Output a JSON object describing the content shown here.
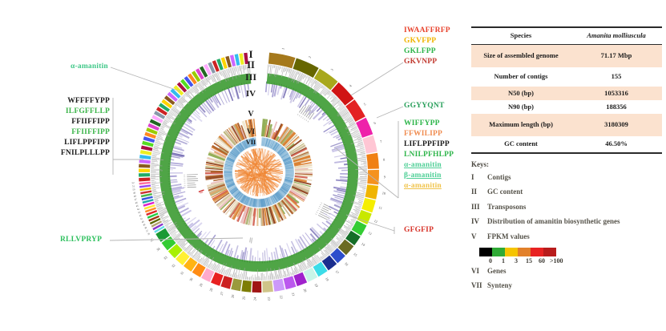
{
  "table": {
    "header": {
      "col1": "Species",
      "col2": "Amanita molliuscula"
    },
    "rows": [
      {
        "label": "Size of assembled genome",
        "value": "71.17 Mbp"
      },
      {
        "label": "Number of contigs",
        "value": "155"
      },
      {
        "label": "N50 (bp)",
        "value": "1053316"
      },
      {
        "label": "N90 (bp)",
        "value": "188356"
      },
      {
        "label": "Maximum length (bp)",
        "value": "3180309"
      },
      {
        "label": "GC content",
        "value": "46.50%"
      }
    ]
  },
  "keys": {
    "title": "Keys:",
    "items": [
      {
        "numeral": "I",
        "label": "Contigs"
      },
      {
        "numeral": "II",
        "label": "GC content"
      },
      {
        "numeral": "III",
        "label": "Transposons"
      },
      {
        "numeral": "IV",
        "label": "Distribution of amanitin biosynthetic genes"
      },
      {
        "numeral": "V",
        "label": "FPKM values"
      },
      {
        "numeral": "VI",
        "label": "Genes"
      },
      {
        "numeral": "VII",
        "label": "Synteny"
      }
    ],
    "fpkm_scale": {
      "colors": [
        "#000000",
        "#2faa35",
        "#f5c400",
        "#e2802a",
        "#e82222",
        "#b81c1c"
      ],
      "labels": [
        "0",
        "1",
        "3",
        "15",
        "60",
        ">100"
      ]
    }
  },
  "labels_left": {
    "amanitin": {
      "text": "α-amanitin",
      "color": "#3fc888"
    },
    "peptides": [
      {
        "text": "WFFFFYPP",
        "color": "#1a1a1a"
      },
      {
        "text": "ILFGFFLLP",
        "color": "#3cb54a"
      },
      {
        "text": "FFIIFFIPP",
        "color": "#1a1a1a"
      },
      {
        "text": "FFIIFFIPP",
        "color": "#3cb54a"
      },
      {
        "text": "LIFLPPFIPP",
        "color": "#1a1a1a"
      },
      {
        "text": "FNILPLLLPP",
        "color": "#1a1a1a"
      }
    ],
    "bottom": {
      "text": "RLLVPRYP",
      "color": "#2ec05e"
    }
  },
  "labels_right": {
    "group1": [
      {
        "text": "IWAAFFRFP",
        "color": "#e8442e"
      },
      {
        "text": "GKVFPP",
        "color": "#f0b400"
      },
      {
        "text": "GKLFPP",
        "color": "#2eb54a"
      },
      {
        "text": "GKVNPP",
        "color": "#c23a30"
      }
    ],
    "single1": {
      "text": "GGYYQNT",
      "color": "#2aa05c"
    },
    "group2": [
      {
        "text": "WIFFYPP",
        "color": "#2eb54a"
      },
      {
        "text": "FFWILIPP",
        "color": "#f08c50"
      },
      {
        "text": "LIFLPPFIPP",
        "color": "#1a1a1a"
      },
      {
        "text": "LNILPFHLPP",
        "color": "#2eb54a"
      },
      {
        "text": "α-amanitin",
        "color": "#4ecf96"
      },
      {
        "text": "β-amanitin",
        "color": "#4ecf96"
      },
      {
        "text": "α-amanitin",
        "color": "#f0c34a"
      }
    ],
    "single2": {
      "text": "GFGFIP",
      "color": "#d8342a"
    }
  },
  "chart_data": {
    "type": "circos",
    "description": "Circular genome map of Amanita molliuscula; seven concentric tracks, numbered contig blocks on the outer ring, orange synteny chords in the centre",
    "tracks": [
      {
        "numeral": "I",
        "name": "Contigs"
      },
      {
        "numeral": "II",
        "name": "GC content"
      },
      {
        "numeral": "III",
        "name": "Transposons"
      },
      {
        "numeral": "IV",
        "name": "Distribution of amanitin biosynthetic genes"
      },
      {
        "numeral": "V",
        "name": "FPKM values"
      },
      {
        "numeral": "VI",
        "name": "Genes"
      },
      {
        "numeral": "VII",
        "name": "Synteny"
      }
    ],
    "contig_segments": [
      {
        "n": 1,
        "w": 13,
        "color": "#a5791c"
      },
      {
        "n": 2,
        "w": 12,
        "color": "#666600"
      },
      {
        "n": 3,
        "w": 11,
        "color": "#a8a81c"
      },
      {
        "n": 4,
        "w": 11,
        "color": "#d01414"
      },
      {
        "n": 5,
        "w": 10,
        "color": "#e32222"
      },
      {
        "n": 6,
        "w": 9,
        "color": "#ee22aa"
      },
      {
        "n": 7,
        "w": 8.5,
        "color": "#ffc6d4"
      },
      {
        "n": 8,
        "w": 8,
        "color": "#f08014"
      },
      {
        "n": 9,
        "w": 7.5,
        "color": "#f5921e"
      },
      {
        "n": 10,
        "w": 7,
        "color": "#f0b400"
      },
      {
        "n": 11,
        "w": 6.5,
        "color": "#f5ee00"
      },
      {
        "n": 12,
        "w": 6,
        "color": "#c8e800"
      },
      {
        "n": 13,
        "w": 6,
        "color": "#33cc33"
      },
      {
        "n": 14,
        "w": 5.5,
        "color": "#156e28"
      },
      {
        "n": 15,
        "w": 6,
        "color": "#6b6b22"
      },
      {
        "n": 16,
        "w": 5.5,
        "color": "#2d4ecc"
      },
      {
        "n": 17,
        "w": 5.5,
        "color": "#1a2e8e"
      },
      {
        "n": 18,
        "w": 5.5,
        "color": "#3cdce8"
      },
      {
        "n": 19,
        "w": 5.5,
        "color": "#c8f5e8"
      },
      {
        "n": 20,
        "w": 5.5,
        "color": "#a022cc"
      },
      {
        "n": 21,
        "w": 5.5,
        "color": "#bb58ee"
      },
      {
        "n": 22,
        "w": 5.5,
        "color": "#cc99fa"
      },
      {
        "n": 23,
        "w": 5.5,
        "color": "#cfc488"
      },
      {
        "n": 24,
        "w": 5,
        "color": "#a01414"
      },
      {
        "n": 25,
        "w": 5,
        "color": "#7d7d04"
      },
      {
        "n": 26,
        "w": 5,
        "color": "#9a9a3c"
      },
      {
        "n": 27,
        "w": 5,
        "color": "#cc2020"
      },
      {
        "n": 28,
        "w": 5,
        "color": "#e82020"
      },
      {
        "n": 29,
        "w": 5,
        "color": "#ffaacc"
      },
      {
        "n": 30,
        "w": 5,
        "color": "#ff8c14"
      },
      {
        "n": 31,
        "w": 5,
        "color": "#ffb414"
      },
      {
        "n": 32,
        "w": 5,
        "color": "#fff033"
      },
      {
        "n": 33,
        "w": 5,
        "color": "#a8f000"
      },
      {
        "n": 34,
        "w": 5,
        "color": "#33cc33"
      },
      {
        "n": 35,
        "w": 5,
        "color": "#1a9934"
      },
      {
        "n": 36,
        "w": 1.5,
        "color": "#66dde8"
      },
      {
        "n": 37,
        "w": 1.5,
        "color": "#8833cc"
      },
      {
        "n": 38,
        "w": 1.5,
        "color": "#b3a272"
      },
      {
        "n": 39,
        "w": 1.5,
        "color": "#5d6a08"
      },
      {
        "n": 40,
        "w": 1.5,
        "color": "#9e3a14"
      },
      {
        "n": 41,
        "w": 1.5,
        "color": "#26cc44"
      },
      {
        "n": 42,
        "w": 1.5,
        "color": "#dd2828"
      },
      {
        "n": 43,
        "w": 1.5,
        "color": "#ff8c28"
      },
      {
        "n": 44,
        "w": 1.5,
        "color": "#ffe833"
      },
      {
        "n": 45,
        "w": 1.5,
        "color": "#dd22cc"
      },
      {
        "n": 46,
        "w": 1.5,
        "color": "#26a8a8"
      },
      {
        "n": 47,
        "w": 1.5,
        "color": "#3355dd"
      },
      {
        "n": 48,
        "w": 1.5,
        "color": "#4ab84a"
      },
      {
        "n": 49,
        "w": 1.5,
        "color": "#cc3333"
      },
      {
        "n": 50,
        "w": 1.5,
        "color": "#eebb00"
      },
      {
        "n": 51,
        "w": 1.5,
        "color": "#9944ee"
      },
      {
        "n": 52,
        "w": 1.5,
        "color": "#ff6aa0"
      }
    ],
    "filler_segments": {
      "count": 40,
      "w": 2.2,
      "colors": [
        "#cc2222",
        "#22aa66",
        "#ffd400",
        "#8a5a1e",
        "#cc66ff",
        "#33bbee",
        "#eeee22",
        "#aa1144",
        "#55dd22",
        "#4455ee",
        "#ff8822",
        "#99cc00",
        "#dd44cc",
        "#226622",
        "#ffaaff",
        "#8899aa"
      ]
    },
    "ring_colors": {
      "gc_band": "#4fa546",
      "gc_histogram": "#a3a3a3",
      "gc_speckle": "#3d8f36",
      "transposon_bars": [
        "#aba3d6",
        "#aba3d6",
        "#938bc8",
        "#c5bfe6",
        "#7d75b8"
      ],
      "fpkm_palette": [
        "#e8d5b5",
        "#e8d5b5",
        "#e0a060",
        "#d97b28",
        "#d97b28",
        "#a8561e",
        "#8a3a14",
        "#b8b070",
        "#8aa84a",
        "#e8b8b8",
        "#d05a4a",
        "#f0e8d0",
        "#c8b890"
      ],
      "gene_band": "#c2dcec",
      "gene_tick": "#5b9bc8",
      "synteny_chord": "#ef8532",
      "gene_cluster_marks": "#8a8a8a",
      "red_marker": "#cc2222"
    },
    "gene_label_clusters_deg": [
      34,
      116,
      268
    ],
    "small_label_deg": 186,
    "red_marker_deg": 252,
    "total_contigs_shown_numbered": 52
  }
}
